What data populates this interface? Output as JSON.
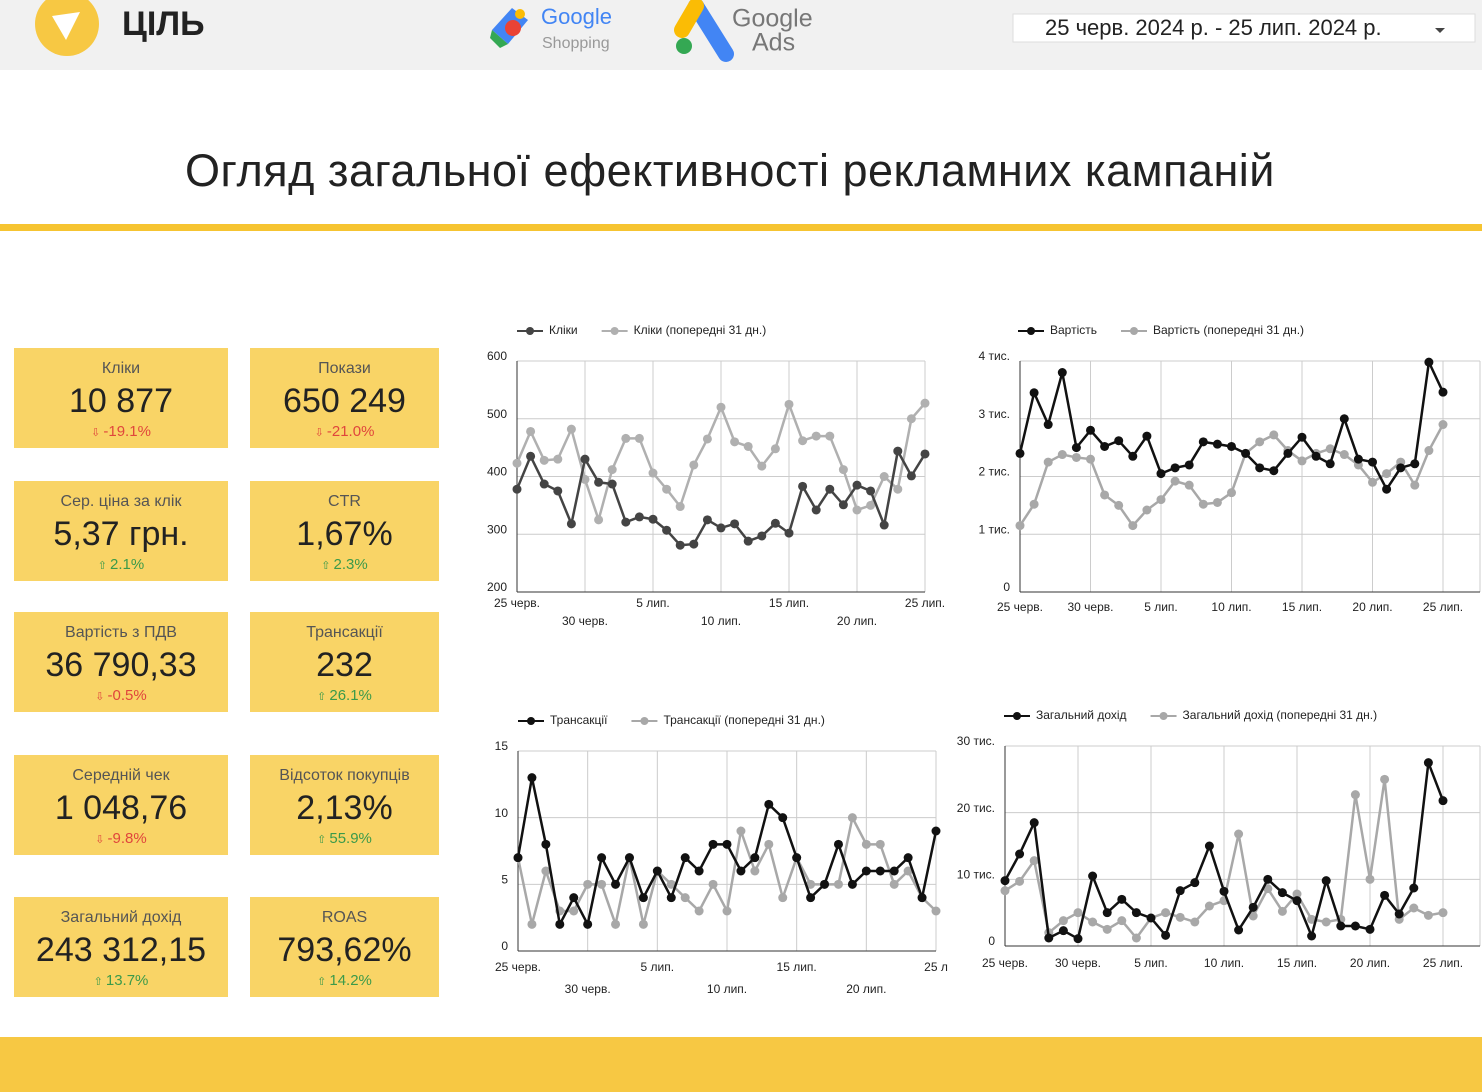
{
  "header": {
    "logo": "ЦІЛЬ",
    "shopping": {
      "brand": "Google",
      "product": "Shopping"
    },
    "ads": {
      "brand": "Google",
      "product": "Ads"
    },
    "date_range": "25 черв. 2024 р. - 25 лип. 2024 р."
  },
  "title": "Огляд загальної ефективності рекламних кампаній",
  "kpis": [
    {
      "label": "Кліки",
      "value": "10 877",
      "change": "-19.1%"
    },
    {
      "label": "Покази",
      "value": "650 249",
      "change": "-21.0%"
    },
    {
      "label": "Сер. ціна за клік",
      "value": "5,37 грн.",
      "change": "2.1%"
    },
    {
      "label": "CTR",
      "value": "1,67%",
      "change": "2.3%"
    },
    {
      "label": "Вартість з ПДВ",
      "value": "36 790,33",
      "change": "-0.5%"
    },
    {
      "label": "Трансакції",
      "value": "232",
      "change": "26.1%"
    },
    {
      "label": "Середній чек",
      "value": "1 048,76",
      "change": "-9.8%"
    },
    {
      "label": "Відсоток покупців",
      "value": "2,13%",
      "change": "55.9%"
    },
    {
      "label": "Загальний дохід",
      "value": "243 312,15",
      "change": "13.7%"
    },
    {
      "label": "ROAS",
      "value": "793,62%",
      "change": "14.2%"
    }
  ],
  "chart_data": [
    {
      "type": "line",
      "categories": [
        "25 черв.",
        null,
        null,
        null,
        null,
        "30 черв.",
        null,
        null,
        null,
        null,
        "5 лип.",
        null,
        null,
        null,
        null,
        "10 лип.",
        null,
        null,
        null,
        null,
        "15 лип.",
        null,
        null,
        null,
        null,
        "20 лип.",
        null,
        null,
        null,
        null,
        "25 лип."
      ],
      "series": [
        {
          "name": "Кліки",
          "color": "#444444",
          "values": [
            378,
            435,
            387,
            375,
            318,
            430,
            390,
            387,
            321,
            330,
            326,
            307,
            281,
            283,
            325,
            311,
            318,
            288,
            297,
            319,
            302,
            383,
            342,
            378,
            351,
            385,
            375,
            316,
            444,
            401,
            439
          ]
        },
        {
          "name": "Кліки (попередні 31 дн.)",
          "color": "#b0b0b0",
          "values": [
            423,
            478,
            428,
            430,
            482,
            395,
            325,
            412,
            466,
            466,
            406,
            378,
            348,
            420,
            465,
            520,
            460,
            452,
            418,
            448,
            525,
            462,
            470,
            470,
            412,
            342,
            350,
            400,
            378,
            500,
            527
          ]
        }
      ],
      "ylim": [
        200,
        600
      ],
      "yticks": [
        200,
        300,
        400,
        500,
        600
      ],
      "grid": true
    },
    {
      "type": "line",
      "categories": [
        "25 черв.",
        null,
        null,
        null,
        null,
        "30 черв.",
        null,
        null,
        null,
        null,
        "5 лип.",
        null,
        null,
        null,
        null,
        "10 лип.",
        null,
        null,
        null,
        null,
        "15 лип.",
        null,
        null,
        null,
        null,
        "20 лип.",
        null,
        null,
        null,
        null,
        "25 лип."
      ],
      "series": [
        {
          "name": "Вартість",
          "color": "#111111",
          "values": [
            2400,
            3450,
            2900,
            3800,
            2500,
            2800,
            2520,
            2620,
            2350,
            2700,
            2050,
            2150,
            2200,
            2600,
            2560,
            2520,
            2400,
            2150,
            2100,
            2400,
            2680,
            2350,
            2220,
            3000,
            2300,
            2250,
            1780,
            2150,
            2220,
            3980,
            3460
          ]
        },
        {
          "name": "Вартість (попередні 31 дн.)",
          "color": "#a8a8a8",
          "values": [
            1150,
            1520,
            2250,
            2380,
            2330,
            2300,
            1680,
            1500,
            1150,
            1420,
            1600,
            1920,
            1850,
            1520,
            1550,
            1720,
            2400,
            2600,
            2720,
            2450,
            2270,
            2400,
            2480,
            2380,
            2200,
            1900,
            2050,
            2250,
            1850,
            2450,
            2900
          ]
        }
      ],
      "ylim": [
        0,
        4000
      ],
      "yticks": [
        0,
        {
          "value": 1000,
          "label": "1 тис."
        },
        {
          "value": 2000,
          "label": "2 тис."
        },
        {
          "value": 3000,
          "label": "3 тис."
        },
        {
          "value": 4000,
          "label": "4 тис."
        }
      ],
      "grid": true
    },
    {
      "type": "line",
      "categories": [
        "25 черв.",
        null,
        null,
        null,
        null,
        "30 черв.",
        null,
        null,
        null,
        null,
        "5 лип.",
        null,
        null,
        null,
        null,
        "10 лип.",
        null,
        null,
        null,
        null,
        "15 лип.",
        null,
        null,
        null,
        null,
        "20 лип.",
        null,
        null,
        null,
        null,
        "25 л"
      ],
      "series": [
        {
          "name": "Трансакції",
          "color": "#111111",
          "values": [
            7,
            13,
            8,
            2,
            4,
            2,
            7,
            5,
            7,
            4,
            6,
            4,
            7,
            6,
            8,
            8,
            6,
            7,
            11,
            10,
            7,
            4,
            5,
            8,
            5,
            6,
            6,
            6,
            7,
            4,
            9
          ]
        },
        {
          "name": "Трансакції (попередні 31 дн.)",
          "color": "#a8a8a8",
          "values": [
            7,
            2,
            6,
            3,
            3,
            5,
            5,
            2,
            7,
            2,
            6,
            5,
            4,
            3,
            5,
            3,
            9,
            6,
            8,
            4,
            7,
            5,
            5,
            5,
            10,
            8,
            8,
            5,
            6,
            4,
            3
          ]
        }
      ],
      "ylim": [
        0,
        15
      ],
      "yticks": [
        0,
        5,
        10,
        15
      ],
      "grid": true
    },
    {
      "type": "line",
      "categories": [
        "25 черв.",
        null,
        null,
        null,
        null,
        "30 черв.",
        null,
        null,
        null,
        null,
        "5 лип.",
        null,
        null,
        null,
        null,
        "10 лип.",
        null,
        null,
        null,
        null,
        "15 лип.",
        null,
        null,
        null,
        null,
        "20 лип.",
        null,
        null,
        null,
        null,
        "25 лип."
      ],
      "series": [
        {
          "name": "Загальний дохід",
          "color": "#111111",
          "values": [
            9800,
            13800,
            18500,
            1200,
            2300,
            1100,
            10500,
            5000,
            7000,
            5000,
            4200,
            1600,
            8300,
            9500,
            15000,
            8200,
            2400,
            5800,
            10000,
            8000,
            6800,
            1500,
            9800,
            3000,
            3000,
            2500,
            7600,
            4800,
            8700,
            27500,
            21800
          ]
        },
        {
          "name": "Загальний дохід (попередні 31 дн.)",
          "color": "#a8a8a8",
          "values": [
            8300,
            9700,
            12800,
            2000,
            3800,
            5000,
            3600,
            2500,
            3800,
            1200,
            4200,
            5000,
            4300,
            3600,
            6000,
            6800,
            16800,
            4500,
            8600,
            5200,
            7800,
            4000,
            3600,
            4000,
            22700,
            10000,
            25000,
            4000,
            5700,
            4600,
            5000
          ]
        }
      ],
      "ylim": [
        0,
        30000
      ],
      "yticks": [
        0,
        {
          "value": 10000,
          "label": "10 тис."
        },
        {
          "value": 20000,
          "label": "20 тис."
        },
        {
          "value": 30000,
          "label": "30 тис."
        }
      ],
      "grid": true
    }
  ]
}
